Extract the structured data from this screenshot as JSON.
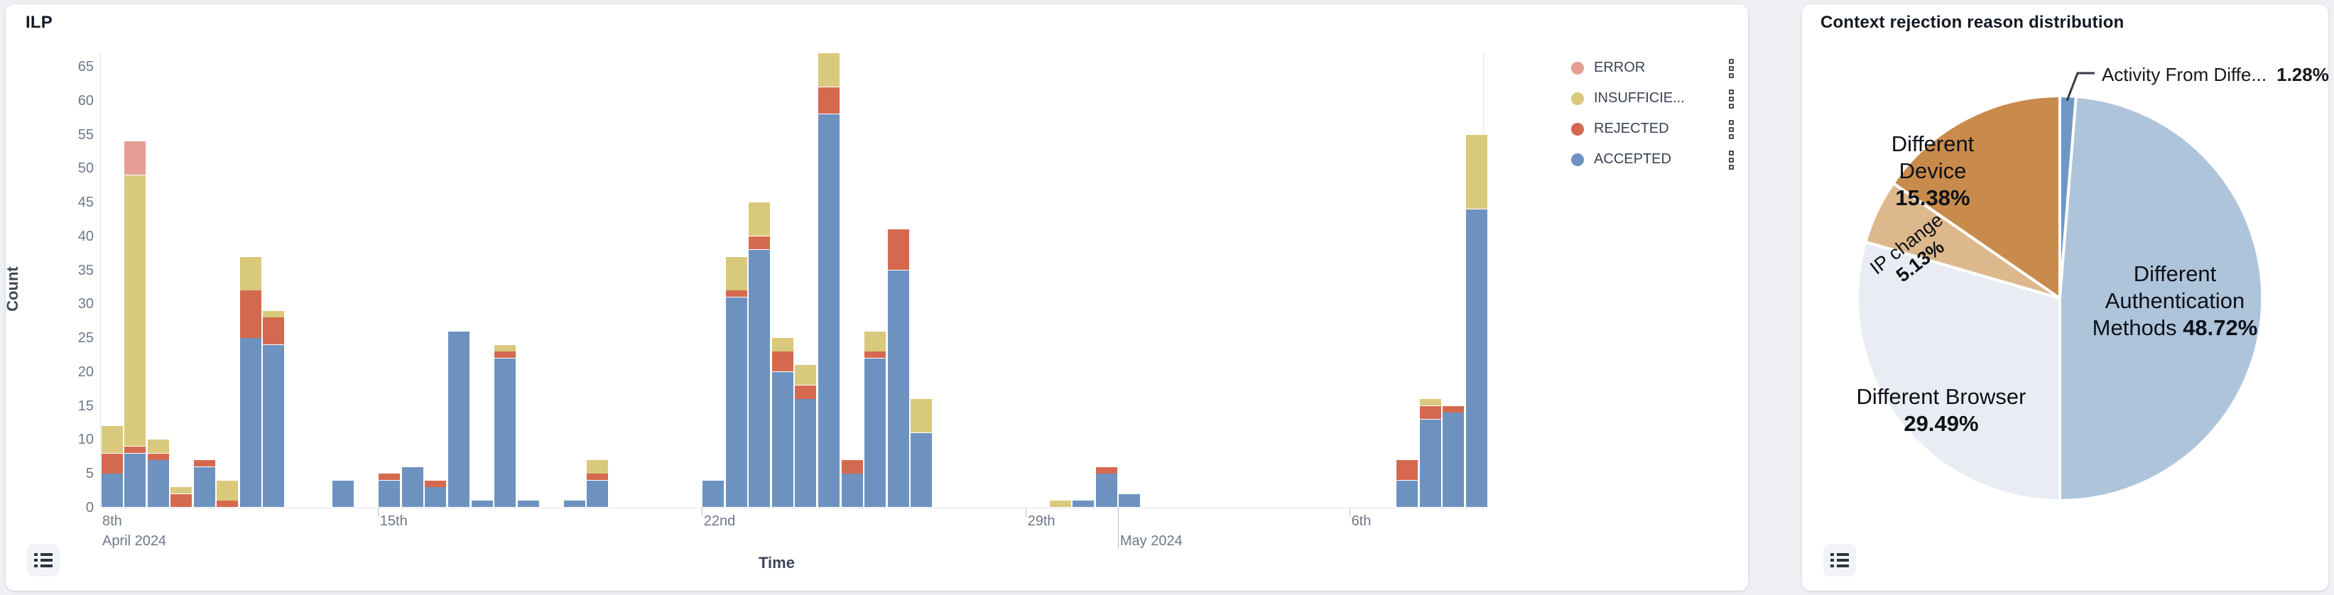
{
  "page_bg": "#eef0f4",
  "left_panel": {
    "title": "ILP",
    "xlabel": "Time",
    "ylabel": "Count",
    "legend": [
      {
        "label": "ERROR",
        "color": "#e49e94"
      },
      {
        "label": "INSUFFICIE...",
        "color": "#d9c97c"
      },
      {
        "label": "REJECTED",
        "color": "#d4694f"
      },
      {
        "label": "ACCEPTED",
        "color": "#6d92c0"
      }
    ],
    "list_button_icon": "list-icon"
  },
  "right_panel": {
    "title": "Context rejection reason distribution",
    "list_button_icon": "list-icon"
  },
  "chart_data": [
    {
      "type": "bar",
      "stacked": true,
      "title": "ILP",
      "xlabel": "Time",
      "ylabel": "Count",
      "ylim": [
        0,
        65
      ],
      "ytick_step": 5,
      "grid": false,
      "legend_position": "top-right",
      "series_order": [
        "ACCEPTED",
        "REJECTED",
        "INSUFFICIENT",
        "ERROR"
      ],
      "series_colors": {
        "ACCEPTED": "#6d92c0",
        "REJECTED": "#d4694f",
        "INSUFFICIENT": "#d9c97c",
        "ERROR": "#e49e94"
      },
      "x_ticks": [
        {
          "label": "8th",
          "sub": "April 2024",
          "slot": 0,
          "at_origin": true
        },
        {
          "label": "15th",
          "slot": 12
        },
        {
          "label": "22nd",
          "slot": 26
        },
        {
          "label": "29th",
          "slot": 40
        },
        {
          "label": "May 2024",
          "slot": 44,
          "second_line": true,
          "tall": true
        },
        {
          "label": "6th",
          "slot": 54
        }
      ],
      "bars": [
        {
          "slot": 0,
          "ACCEPTED": 5,
          "REJECTED": 3,
          "INSUFFICIENT": 4
        },
        {
          "slot": 1,
          "ACCEPTED": 8,
          "REJECTED": 1,
          "INSUFFICIENT": 40,
          "ERROR": 5
        },
        {
          "slot": 2,
          "ACCEPTED": 7,
          "REJECTED": 1,
          "INSUFFICIENT": 2
        },
        {
          "slot": 3,
          "REJECTED": 2,
          "INSUFFICIENT": 1
        },
        {
          "slot": 4,
          "ACCEPTED": 6,
          "REJECTED": 1
        },
        {
          "slot": 5,
          "REJECTED": 1,
          "INSUFFICIENT": 3
        },
        {
          "slot": 6,
          "ACCEPTED": 25,
          "REJECTED": 7,
          "INSUFFICIENT": 5
        },
        {
          "slot": 7,
          "ACCEPTED": 24,
          "REJECTED": 4,
          "INSUFFICIENT": 1
        },
        {
          "slot": 10,
          "ACCEPTED": 4
        },
        {
          "slot": 12,
          "ACCEPTED": 4,
          "REJECTED": 1
        },
        {
          "slot": 13,
          "ACCEPTED": 6
        },
        {
          "slot": 14,
          "ACCEPTED": 3,
          "REJECTED": 1
        },
        {
          "slot": 15,
          "ACCEPTED": 26
        },
        {
          "slot": 16,
          "ACCEPTED": 1
        },
        {
          "slot": 17,
          "ACCEPTED": 22,
          "REJECTED": 1,
          "INSUFFICIENT": 1
        },
        {
          "slot": 18,
          "ACCEPTED": 1
        },
        {
          "slot": 20,
          "ACCEPTED": 1
        },
        {
          "slot": 21,
          "ACCEPTED": 4,
          "REJECTED": 1,
          "INSUFFICIENT": 2
        },
        {
          "slot": 26,
          "ACCEPTED": 4
        },
        {
          "slot": 27,
          "ACCEPTED": 31,
          "REJECTED": 1,
          "INSUFFICIENT": 5
        },
        {
          "slot": 28,
          "ACCEPTED": 38,
          "REJECTED": 2,
          "INSUFFICIENT": 5
        },
        {
          "slot": 29,
          "ACCEPTED": 20,
          "REJECTED": 3,
          "INSUFFICIENT": 2
        },
        {
          "slot": 30,
          "ACCEPTED": 16,
          "REJECTED": 2,
          "INSUFFICIENT": 3
        },
        {
          "slot": 31,
          "ACCEPTED": 58,
          "REJECTED": 4,
          "INSUFFICIENT": 5
        },
        {
          "slot": 32,
          "ACCEPTED": 5,
          "REJECTED": 2
        },
        {
          "slot": 33,
          "ACCEPTED": 22,
          "REJECTED": 1,
          "INSUFFICIENT": 3
        },
        {
          "slot": 34,
          "ACCEPTED": 35,
          "REJECTED": 6
        },
        {
          "slot": 35,
          "ACCEPTED": 11,
          "INSUFFICIENT": 5
        },
        {
          "slot": 41,
          "INSUFFICIENT": 1
        },
        {
          "slot": 42,
          "ACCEPTED": 1
        },
        {
          "slot": 43,
          "ACCEPTED": 5,
          "REJECTED": 1
        },
        {
          "slot": 44,
          "ACCEPTED": 2
        },
        {
          "slot": 56,
          "ACCEPTED": 4,
          "REJECTED": 3
        },
        {
          "slot": 57,
          "ACCEPTED": 13,
          "REJECTED": 2,
          "INSUFFICIENT": 1
        },
        {
          "slot": 58,
          "ACCEPTED": 14,
          "REJECTED": 1
        },
        {
          "slot": 59,
          "ACCEPTED": 44,
          "INSUFFICIENT": 11
        }
      ]
    },
    {
      "type": "pie",
      "title": "Context rejection reason distribution",
      "start_angle_deg": 0,
      "clockwise": true,
      "slices": [
        {
          "name": "Activity From Diffe...",
          "value": 1.28,
          "pct_label": "1.28%",
          "color": "#7096c3",
          "label_style": "callout"
        },
        {
          "name": "Different Authentication Methods",
          "value": 48.72,
          "pct_label": "48.72%",
          "color": "#aec4db",
          "label_lines": [
            "Different",
            "Authentication",
            "Methods"
          ],
          "pct_inline": true
        },
        {
          "name": "Different Browser",
          "value": 29.49,
          "pct_label": "29.49%",
          "color": "#e9edf3",
          "label_lines": [
            "Different Browser"
          ]
        },
        {
          "name": "IP change",
          "value": 5.13,
          "pct_label": "5.13%",
          "color": "#deb88d",
          "label_lines": [
            "IP change"
          ],
          "rotated": true
        },
        {
          "name": "Different Device",
          "value": 15.38,
          "pct_label": "15.38%",
          "color": "#c98b4b",
          "label_lines": [
            "Different",
            "Device"
          ]
        }
      ]
    }
  ]
}
